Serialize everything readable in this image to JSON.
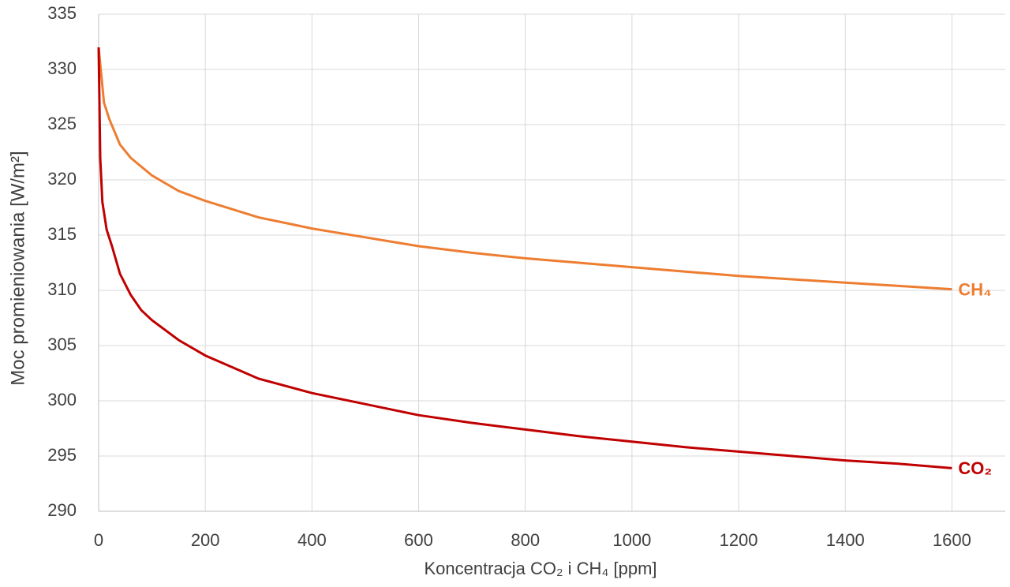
{
  "chart_data": {
    "type": "line",
    "x_label": "Koncentracja CO₂ i CH₄ [ppm]",
    "y_label": "Moc promieniowania [W/m²]",
    "xlim": [
      0,
      1700
    ],
    "xticks": [
      0,
      200,
      400,
      600,
      800,
      1000,
      1200,
      1400,
      1600
    ],
    "ylim": [
      290,
      335
    ],
    "yticks": [
      290,
      295,
      300,
      305,
      310,
      315,
      320,
      325,
      330,
      335
    ],
    "grid": true,
    "series": [
      {
        "name": "CH₄",
        "color": "#ed7d31",
        "x": [
          0,
          5,
          10,
          20,
          40,
          60,
          100,
          150,
          200,
          300,
          400,
          500,
          600,
          700,
          800,
          900,
          1000,
          1100,
          1200,
          1300,
          1400,
          1500,
          1600
        ],
        "values": [
          332,
          329.5,
          327,
          325.5,
          323.2,
          322,
          320.4,
          319,
          318.1,
          316.6,
          315.6,
          314.8,
          314.0,
          313.4,
          312.9,
          312.5,
          312.1,
          311.7,
          311.3,
          311.0,
          310.7,
          310.4,
          310.1
        ]
      },
      {
        "name": "CO₂",
        "color": "#c00000",
        "x": [
          0,
          3,
          7,
          15,
          25,
          40,
          60,
          80,
          100,
          150,
          200,
          300,
          400,
          500,
          600,
          700,
          800,
          900,
          1000,
          1100,
          1200,
          1300,
          1400,
          1500,
          1600
        ],
        "values": [
          332,
          322,
          318,
          315.5,
          314,
          311.5,
          309.6,
          308.2,
          307.3,
          305.5,
          304.1,
          302.0,
          300.7,
          299.7,
          298.7,
          298.0,
          297.4,
          296.8,
          296.3,
          295.8,
          295.4,
          295.0,
          294.6,
          294.3,
          293.9
        ]
      }
    ]
  }
}
